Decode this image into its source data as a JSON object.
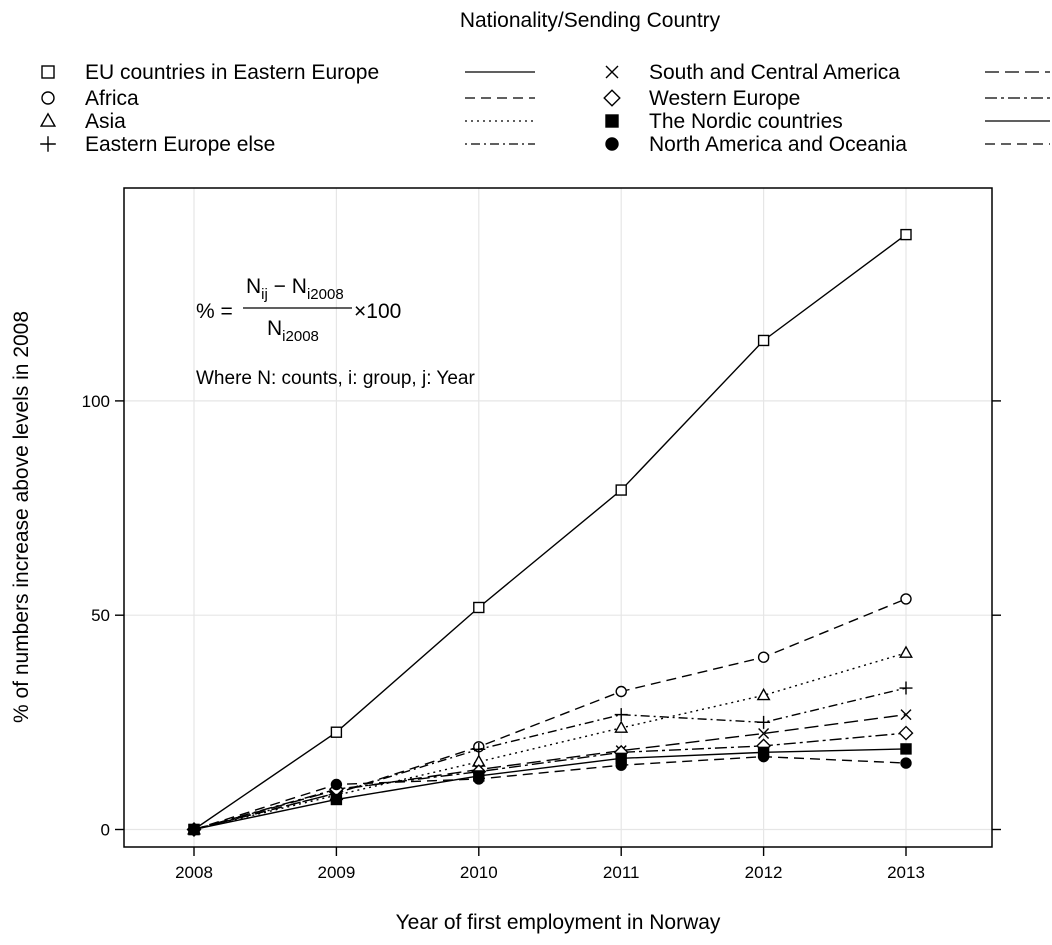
{
  "legend": {
    "title": "Nationality/Sending Country"
  },
  "formula": {
    "lhs": "% =",
    "numerator": {
      "a": "N",
      "a_sub": "ij",
      "minus": " − ",
      "b": "N",
      "b_sub": "i2008"
    },
    "denominator": {
      "b": "N",
      "b_sub": "i2008"
    },
    "times": "×100",
    "note": "Where N: counts, i: group, j: Year"
  },
  "chart_data": {
    "type": "line",
    "title": "",
    "xlabel": "Year of first employment in Norway",
    "ylabel": "% of numbers increase above levels in 2008",
    "x": [
      2008,
      2009,
      2010,
      2011,
      2012,
      2013
    ],
    "xlim": [
      2007.5,
      2013.6
    ],
    "ylim": [
      -8,
      150
    ],
    "xticks": [
      "2008",
      "2009",
      "2010",
      "2011",
      "2012",
      "2013"
    ],
    "yticks": [
      0,
      50,
      100
    ],
    "grid": "vertical",
    "legend_position": "top",
    "series": [
      {
        "name": "EU countries in Eastern Europe",
        "marker": "square-open",
        "dash": "solid",
        "values": [
          0,
          22.7,
          51.8,
          79.2,
          114.1,
          138.8
        ]
      },
      {
        "name": "Africa",
        "marker": "circle-open",
        "dash": "dashed",
        "values": [
          0,
          8.5,
          19.3,
          32.2,
          40.2,
          53.8
        ]
      },
      {
        "name": "Asia",
        "marker": "triangle-open",
        "dash": "dotted",
        "values": [
          0,
          8.0,
          15.8,
          23.7,
          31.3,
          41.2
        ]
      },
      {
        "name": "Eastern Europe else",
        "marker": "plus",
        "dash": "dotdash",
        "values": [
          0,
          8.5,
          18.7,
          26.8,
          25.0,
          33.0
        ]
      },
      {
        "name": "South and Central America",
        "marker": "cross",
        "dash": "longdash",
        "values": [
          0,
          9.2,
          14.0,
          18.4,
          22.4,
          26.8
        ]
      },
      {
        "name": "Western Europe",
        "marker": "diamond-open",
        "dash": "twodash",
        "values": [
          0,
          9.4,
          13.5,
          18.0,
          19.5,
          22.5
        ]
      },
      {
        "name": "The Nordic countries",
        "marker": "square-filled",
        "dash": "solid",
        "values": [
          0,
          7.0,
          12.5,
          16.6,
          18.0,
          18.8
        ]
      },
      {
        "name": "North America and Oceania",
        "marker": "circle-filled",
        "dash": "dashed",
        "values": [
          0,
          10.5,
          11.8,
          15.0,
          17.0,
          15.5
        ]
      }
    ]
  }
}
